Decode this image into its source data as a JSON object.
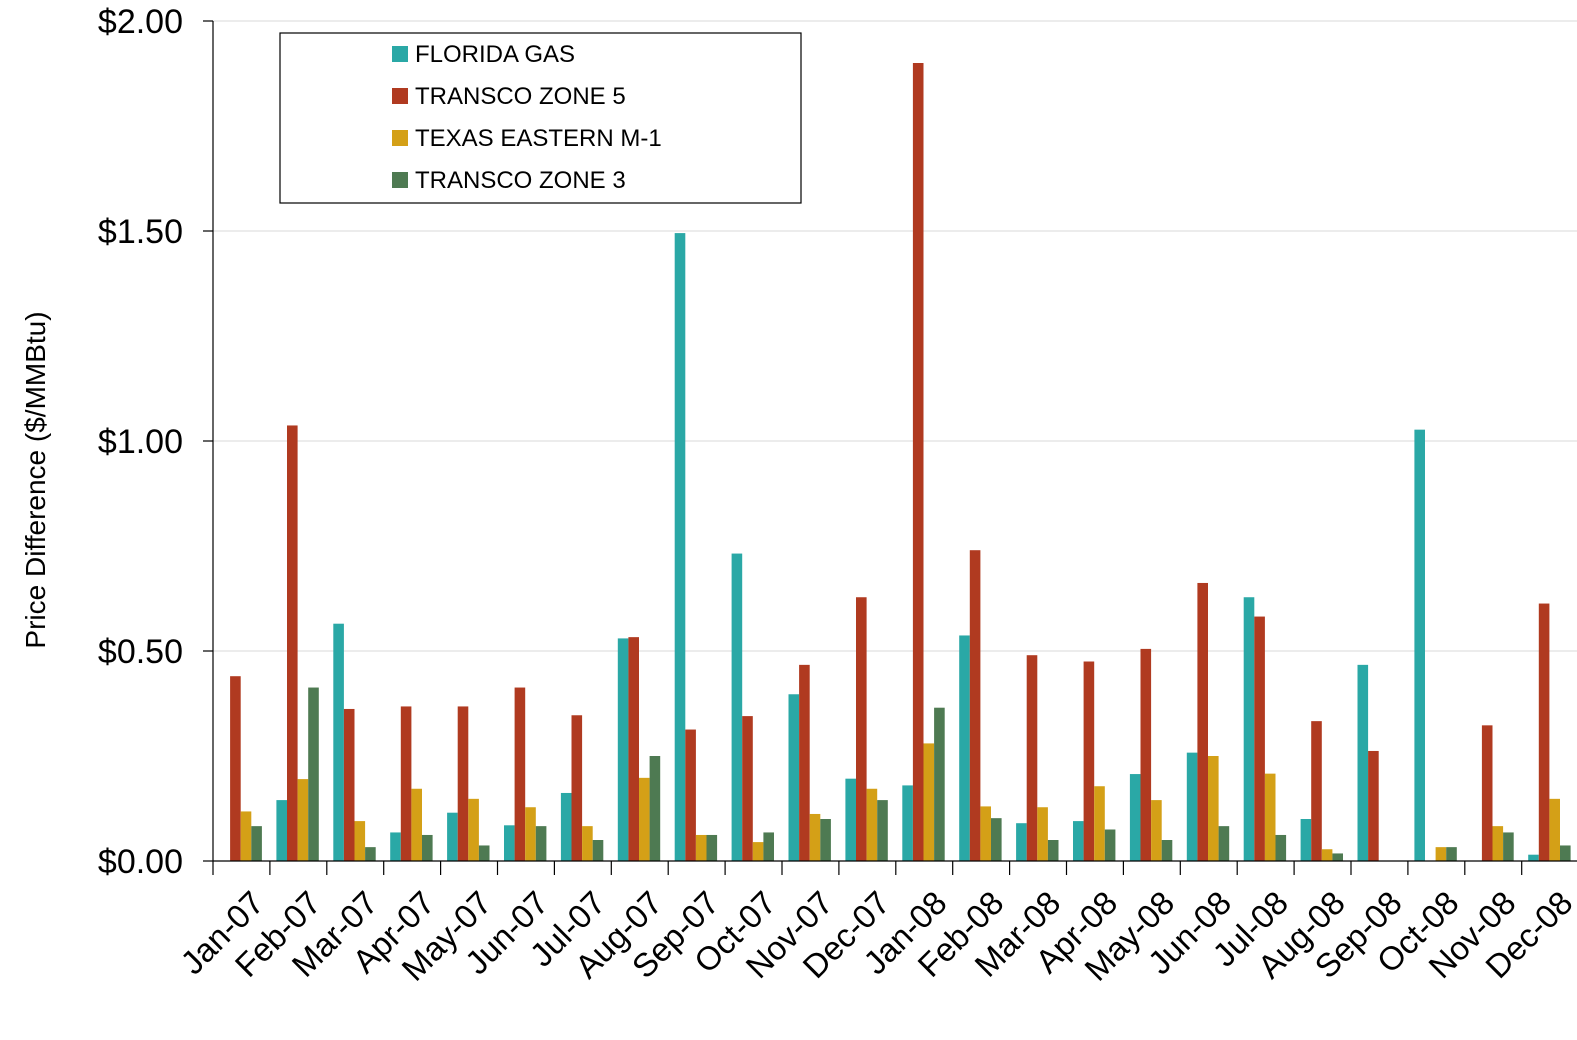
{
  "chart_data": {
    "type": "bar",
    "title": "",
    "xlabel": "",
    "ylabel": "Price Difference  ($/MMBtu)",
    "ylim": [
      0,
      2.0
    ],
    "y_ticks": [
      "$0.00",
      "$0.50",
      "$1.00",
      "$1.50",
      "$2.00"
    ],
    "y_tick_values": [
      0,
      0.5,
      1.0,
      1.5,
      2.0
    ],
    "grid": true,
    "legend_position": "top-left",
    "categories": [
      "Jan-07",
      "Feb-07",
      "Mar-07",
      "Apr-07",
      "May-07",
      "Jun-07",
      "Jul-07",
      "Aug-07",
      "Sep-07",
      "Oct-07",
      "Nov-07",
      "Dec-07",
      "Jan-08",
      "Feb-08",
      "Mar-08",
      "Apr-08",
      "May-08",
      "Jun-08",
      "Jul-08",
      "Aug-08",
      "Sep-08",
      "Oct-08",
      "Nov-08",
      "Dec-08"
    ],
    "series": [
      {
        "name": "FLORIDA GAS",
        "color": "#2AA8A6",
        "values": [
          0.0,
          0.145,
          0.565,
          0.068,
          0.115,
          0.085,
          0.162,
          0.53,
          1.495,
          0.732,
          0.397,
          0.196,
          0.18,
          0.537,
          0.09,
          0.095,
          0.207,
          0.258,
          0.628,
          0.1,
          0.467,
          1.027,
          0.0,
          0.015
        ]
      },
      {
        "name": "TRANSCO ZONE 5",
        "color": "#B03A20",
        "values": [
          0.44,
          1.037,
          0.362,
          0.368,
          0.368,
          0.413,
          0.347,
          0.533,
          0.313,
          0.345,
          0.467,
          0.628,
          1.9,
          0.74,
          0.49,
          0.475,
          0.505,
          0.662,
          0.582,
          0.333,
          0.262,
          0.0,
          0.323,
          0.613
        ]
      },
      {
        "name": "TEXAS EASTERN M-1",
        "color": "#D4A017",
        "values": [
          0.118,
          0.195,
          0.095,
          0.172,
          0.148,
          0.128,
          0.083,
          0.198,
          0.062,
          0.045,
          0.112,
          0.172,
          0.28,
          0.13,
          0.128,
          0.178,
          0.145,
          0.25,
          0.208,
          0.028,
          0.0,
          0.033,
          0.083,
          0.148
        ]
      },
      {
        "name": "TRANSCO ZONE 3",
        "color": "#4E7A52",
        "values": [
          0.083,
          0.413,
          0.033,
          0.062,
          0.037,
          0.083,
          0.05,
          0.25,
          0.062,
          0.068,
          0.1,
          0.145,
          0.365,
          0.102,
          0.05,
          0.075,
          0.05,
          0.083,
          0.062,
          0.018,
          0.0,
          0.033,
          0.068,
          0.037
        ]
      }
    ]
  }
}
